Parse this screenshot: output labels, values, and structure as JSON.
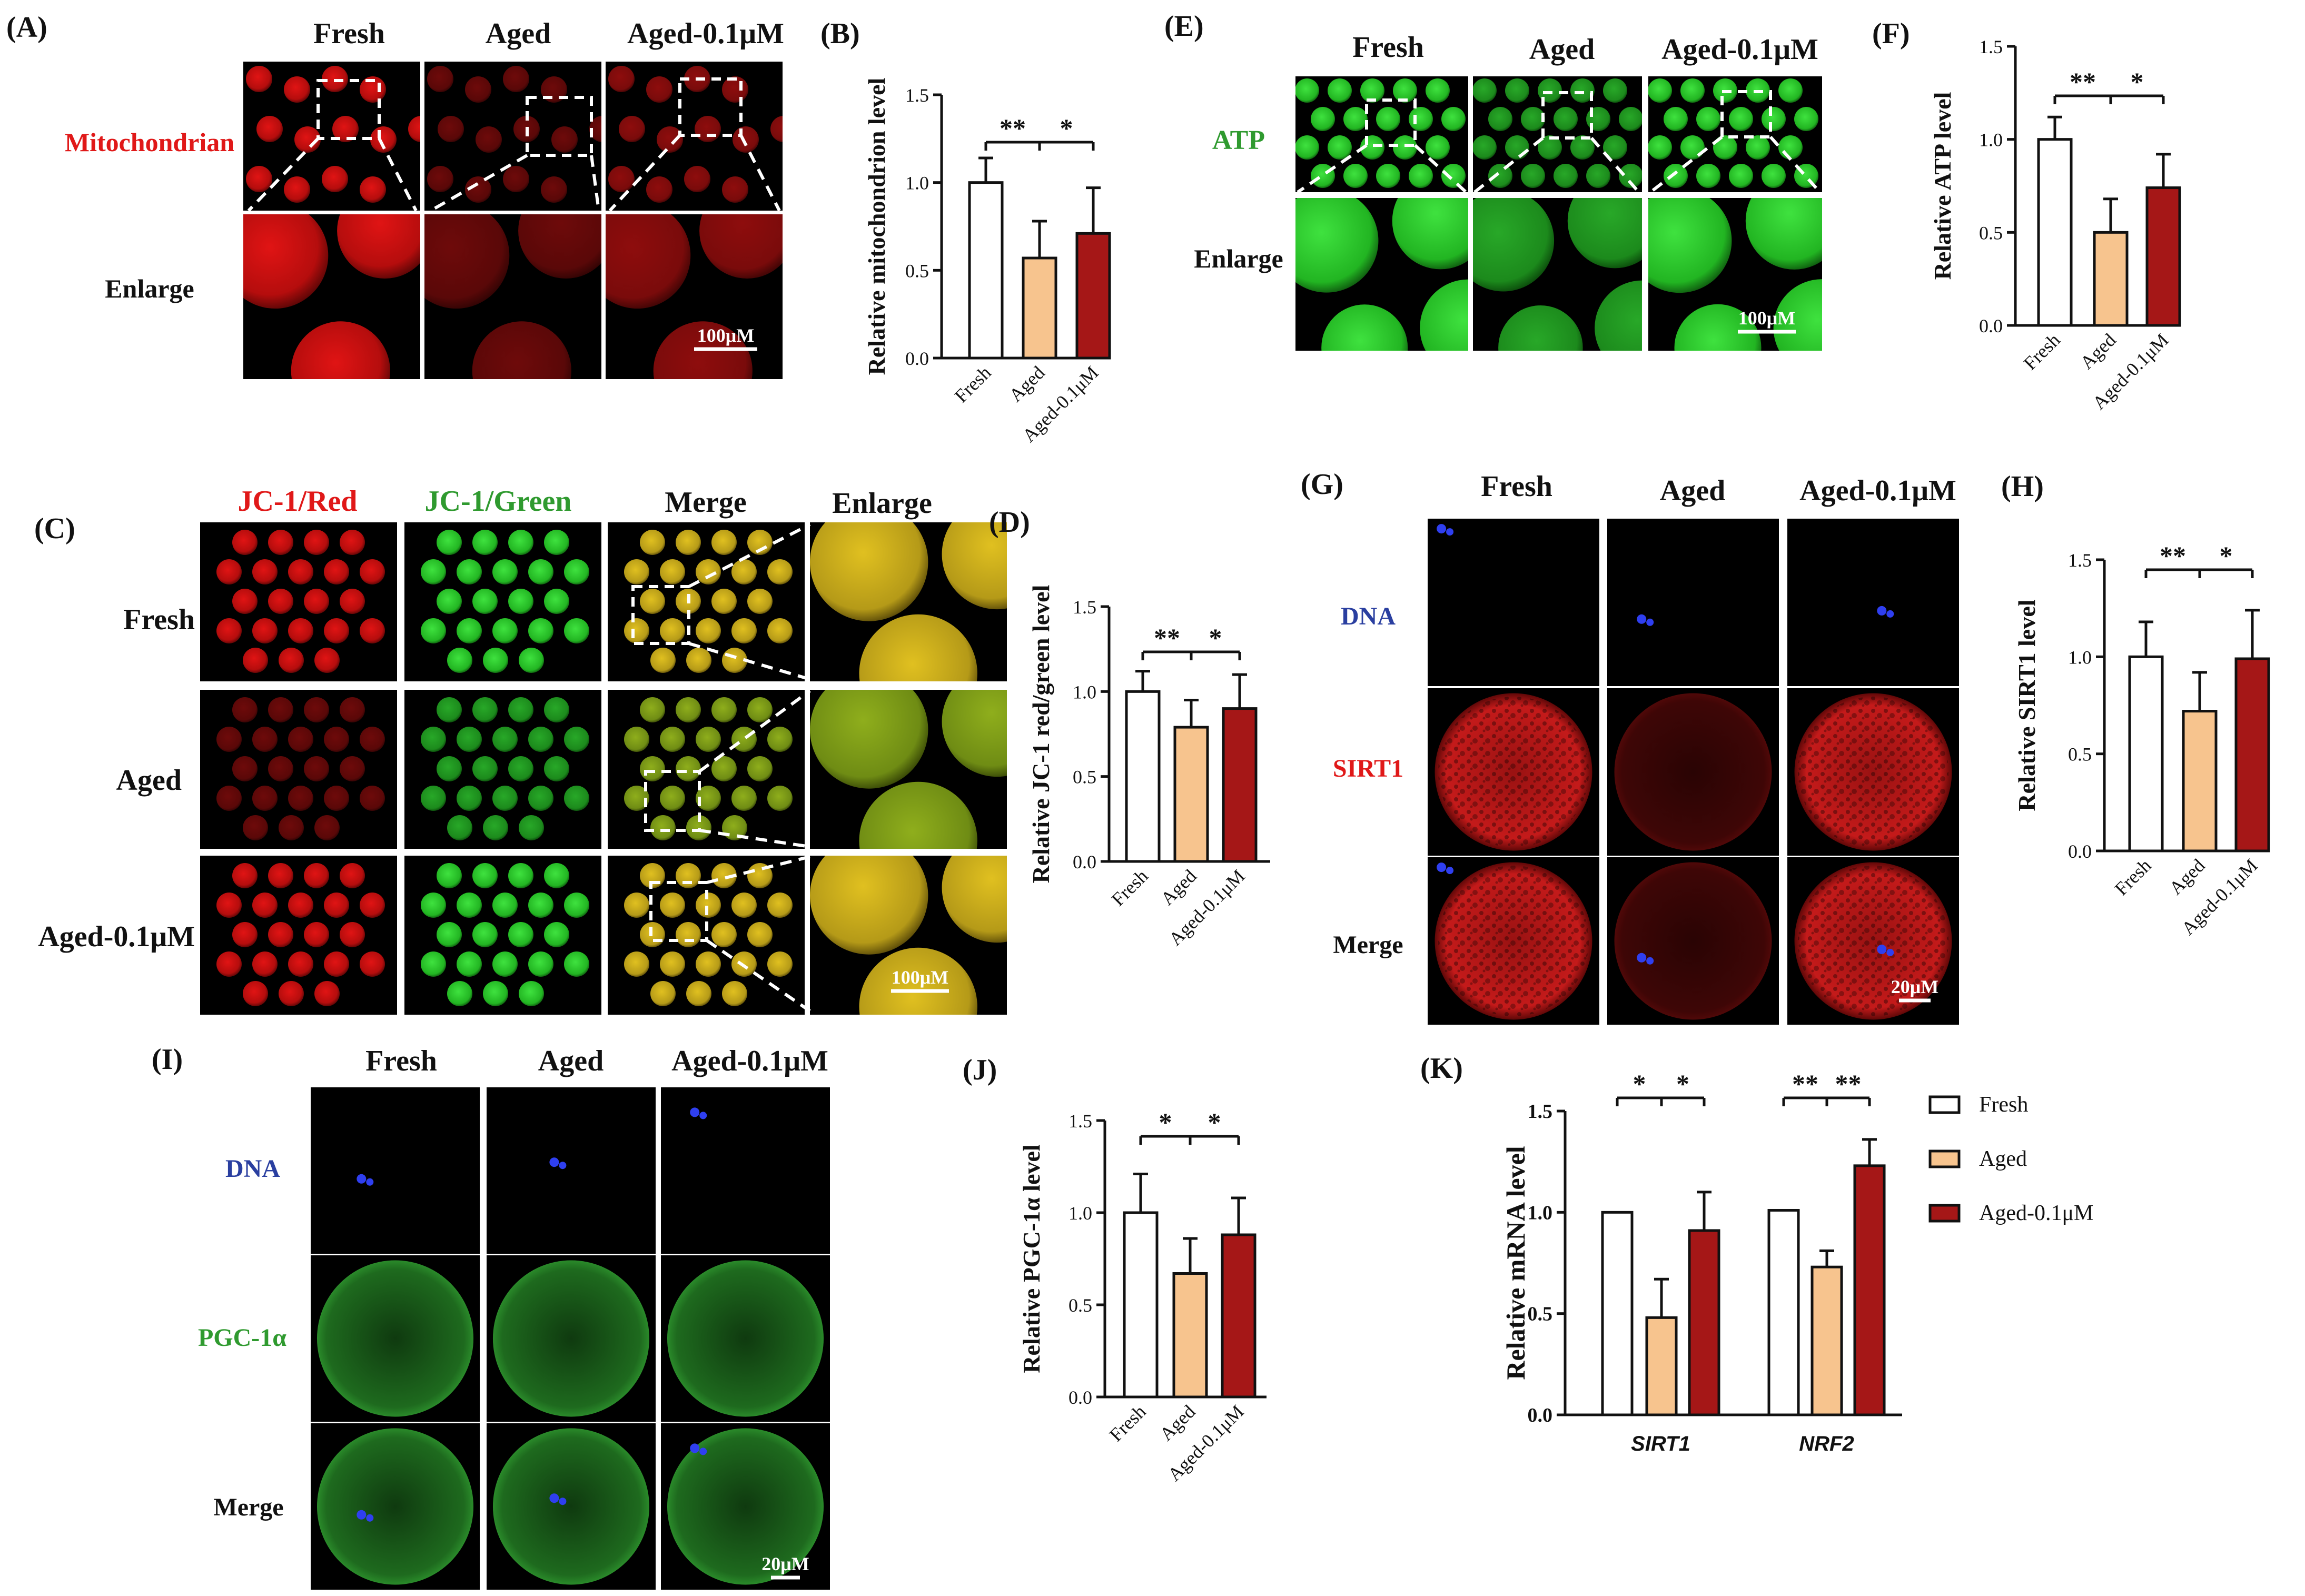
{
  "colors": {
    "fresh_fill": "#ffffff",
    "aged_fill": "#f7c48e",
    "treated_fill": "#a51717",
    "red_stain": "#c01010",
    "green_stain": "#2fc42f",
    "yellow_merge": "#c8c21e",
    "dna_blue": "#2f3ff0",
    "label_red": "#e01818",
    "label_green": "#2f9a2f",
    "label_blue": "#2a3fa0"
  },
  "panel_letters": {
    "A": "(A)",
    "B": "(B)",
    "C": "(C)",
    "D": "(D)",
    "E": "(E)",
    "F": "(F)",
    "G": "(G)",
    "H": "(H)",
    "I": "(I)",
    "J": "(J)",
    "K": "(K)"
  },
  "groups": {
    "fresh": "Fresh",
    "aged": "Aged",
    "treated": "Aged-0.1μM"
  },
  "panel_A": {
    "row_top": "Mitochondrian",
    "row_bottom": "Enlarge",
    "scale": "100μM"
  },
  "panel_C": {
    "col_red": "JC-1/Red",
    "col_green": "JC-1/Green",
    "col_merge": "Merge",
    "col_enlarge": "Enlarge",
    "scale": "100μM"
  },
  "panel_E": {
    "row_top": "ATP",
    "row_bottom": "Enlarge",
    "scale": "100μM"
  },
  "panel_G": {
    "row_dna": "DNA",
    "row_protein": "SIRT1",
    "row_merge": "Merge",
    "scale": "20μM"
  },
  "panel_I": {
    "row_dna": "DNA",
    "row_protein": "PGC-1α",
    "row_merge": "Merge",
    "scale": "20μM"
  },
  "chart_data": [
    {
      "id": "B",
      "type": "bar",
      "categories": [
        "Fresh",
        "Aged",
        "Aged-0.1μM"
      ],
      "values": [
        1.0,
        0.57,
        0.71
      ],
      "errors": [
        0.14,
        0.21,
        0.26
      ],
      "ylabel": "Relative mitochondrion level",
      "ylim": [
        0,
        1.5
      ],
      "yticks": [
        "0.0",
        "0.5",
        "1.0",
        "1.5"
      ],
      "significance": [
        "**",
        "*"
      ]
    },
    {
      "id": "D",
      "type": "bar",
      "categories": [
        "Fresh",
        "Aged",
        "Aged-0.1μM"
      ],
      "values": [
        1.0,
        0.79,
        0.9
      ],
      "errors": [
        0.12,
        0.16,
        0.2
      ],
      "ylabel": "Relative JC-1 red/green level",
      "ylim": [
        0,
        1.5
      ],
      "yticks": [
        "0.0",
        "0.5",
        "1.0",
        "1.5"
      ],
      "significance": [
        "**",
        "*"
      ]
    },
    {
      "id": "F",
      "type": "bar",
      "categories": [
        "Fresh",
        "Aged",
        "Aged-0.1μM"
      ],
      "values": [
        1.0,
        0.5,
        0.74
      ],
      "errors": [
        0.12,
        0.18,
        0.18
      ],
      "ylabel": "Relative ATP level",
      "ylim": [
        0,
        1.5
      ],
      "yticks": [
        "0.0",
        "0.5",
        "1.0",
        "1.5"
      ],
      "significance": [
        "**",
        "*"
      ]
    },
    {
      "id": "H",
      "type": "bar",
      "categories": [
        "Fresh",
        "Aged",
        "Aged-0.1μM"
      ],
      "values": [
        1.0,
        0.72,
        0.99
      ],
      "errors": [
        0.18,
        0.2,
        0.25
      ],
      "ylabel": "Relative SIRT1 level",
      "ylim": [
        0,
        1.5
      ],
      "yticks": [
        "0.0",
        "0.5",
        "1.0",
        "1.5"
      ],
      "significance": [
        "**",
        "*"
      ]
    },
    {
      "id": "J",
      "type": "bar",
      "categories": [
        "Fresh",
        "Aged",
        "Aged-0.1μM"
      ],
      "values": [
        1.0,
        0.67,
        0.88
      ],
      "errors": [
        0.21,
        0.19,
        0.2
      ],
      "ylabel": "Relative PGC-1α level",
      "ylim": [
        0,
        1.5
      ],
      "yticks": [
        "0.0",
        "0.5",
        "1.0",
        "1.5"
      ],
      "significance": [
        "*",
        "*"
      ]
    },
    {
      "id": "K",
      "type": "bar",
      "categories": [
        "SIRT1",
        "NRF2"
      ],
      "series": [
        {
          "name": "Fresh",
          "values": [
            1.0,
            1.01
          ],
          "errors": [
            0,
            0
          ]
        },
        {
          "name": "Aged",
          "values": [
            0.48,
            0.73
          ],
          "errors": [
            0.19,
            0.08
          ]
        },
        {
          "name": "Aged-0.1μM",
          "values": [
            0.91,
            1.23
          ],
          "errors": [
            0.19,
            0.13
          ]
        }
      ],
      "ylabel": "Relative mRNA level",
      "ylim": [
        0,
        1.5
      ],
      "yticks": [
        "0.0",
        "0.5",
        "1.0",
        "1.5"
      ],
      "significance": [
        [
          "*",
          "*"
        ],
        [
          "**",
          "**"
        ]
      ],
      "legend": "right"
    }
  ]
}
